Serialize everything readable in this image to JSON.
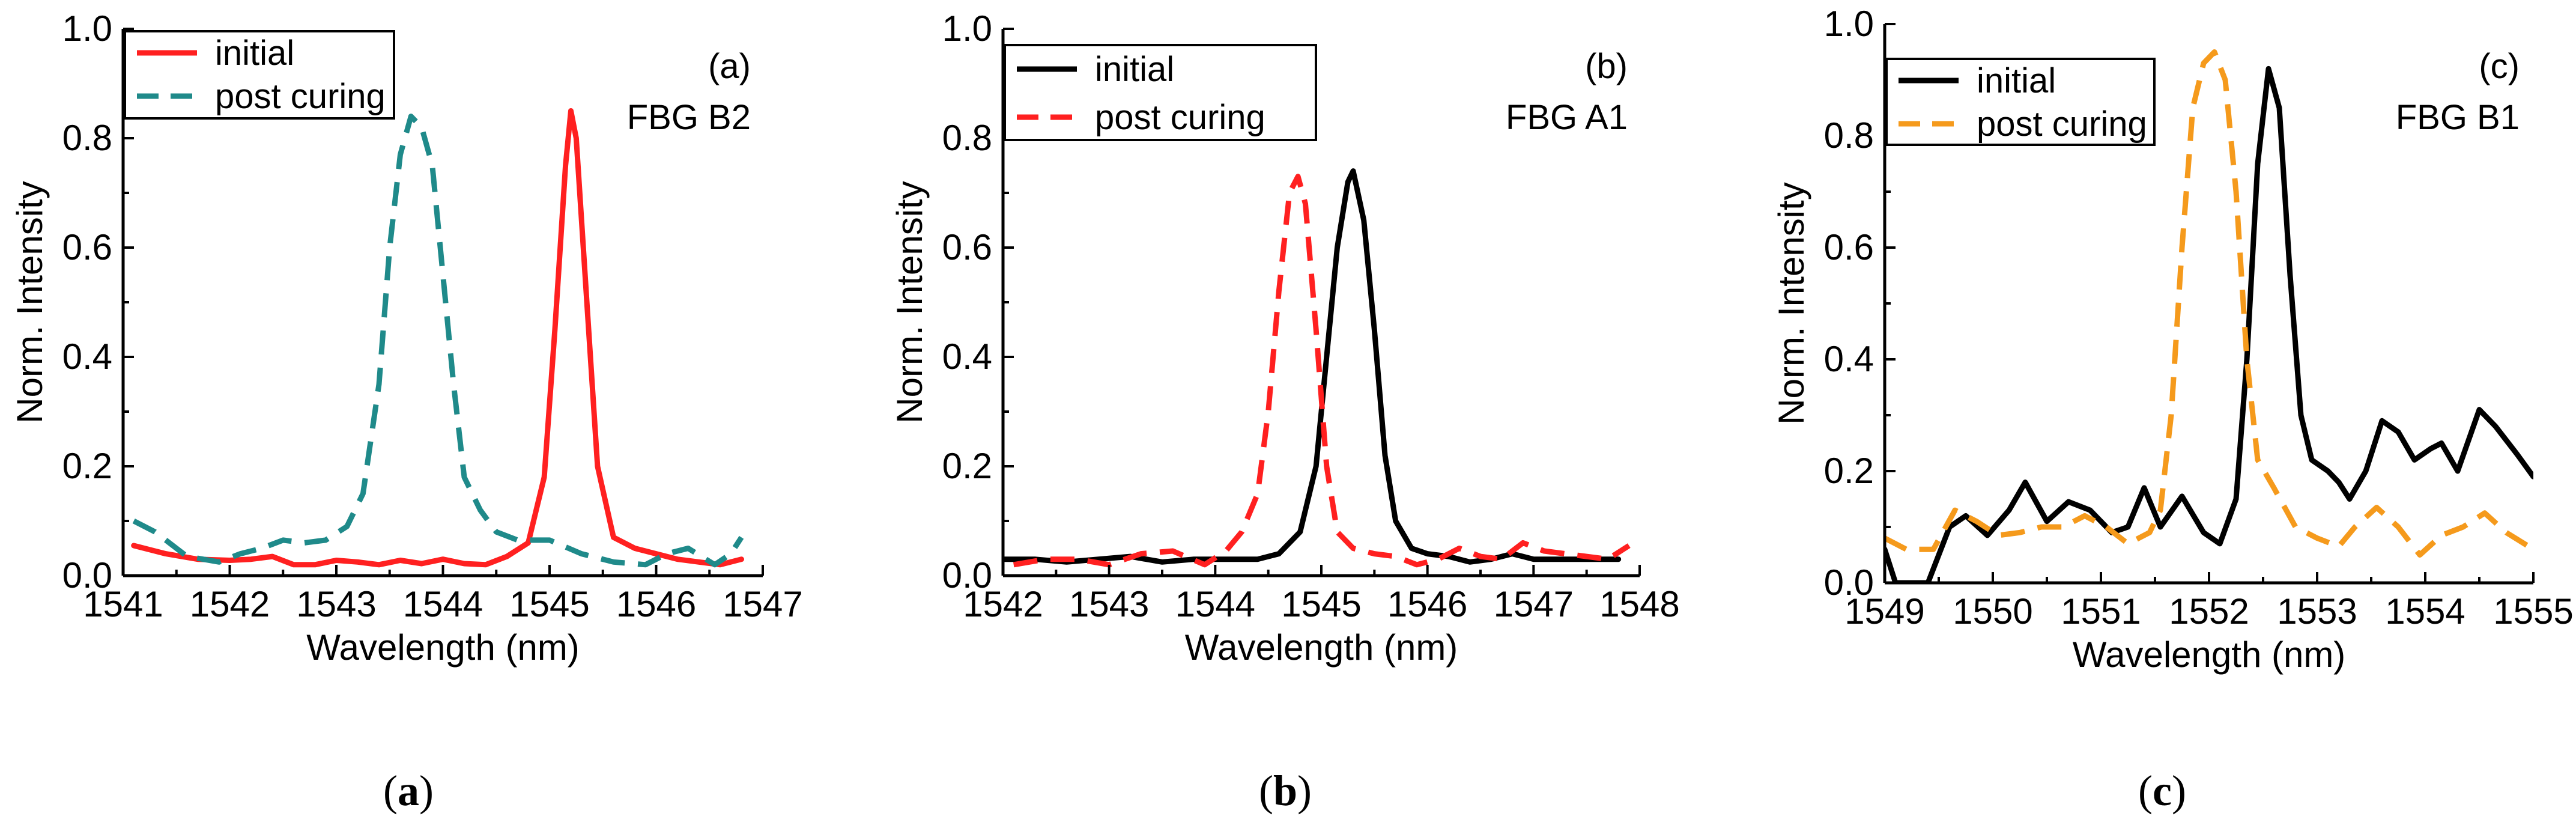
{
  "chart_data": [
    {
      "type": "line",
      "panel_label": "(a)",
      "annotation": "FBG B2",
      "caption": "a",
      "xlabel": "Wavelength (nm)",
      "ylabel": "Norm. Intensity",
      "xlim": [
        1541,
        1547
      ],
      "ylim": [
        0,
        1.0
      ],
      "xticks": [
        1541,
        1542,
        1543,
        1544,
        1545,
        1546,
        1547
      ],
      "yticks": [
        0.0,
        0.2,
        0.4,
        0.6,
        0.8,
        1.0
      ],
      "legend_position": "top-left",
      "series": [
        {
          "name": "initial",
          "color": "#ff2020",
          "style": "solid",
          "points": [
            [
              1541.1,
              0.055
            ],
            [
              1541.4,
              0.04
            ],
            [
              1541.7,
              0.03
            ],
            [
              1542.0,
              0.028
            ],
            [
              1542.2,
              0.03
            ],
            [
              1542.4,
              0.035
            ],
            [
              1542.6,
              0.02
            ],
            [
              1542.8,
              0.02
            ],
            [
              1543.0,
              0.028
            ],
            [
              1543.2,
              0.025
            ],
            [
              1543.4,
              0.02
            ],
            [
              1543.6,
              0.028
            ],
            [
              1543.8,
              0.022
            ],
            [
              1544.0,
              0.03
            ],
            [
              1544.2,
              0.022
            ],
            [
              1544.4,
              0.02
            ],
            [
              1544.6,
              0.035
            ],
            [
              1544.8,
              0.06
            ],
            [
              1544.95,
              0.18
            ],
            [
              1545.05,
              0.45
            ],
            [
              1545.15,
              0.75
            ],
            [
              1545.2,
              0.85
            ],
            [
              1545.25,
              0.8
            ],
            [
              1545.35,
              0.5
            ],
            [
              1545.45,
              0.2
            ],
            [
              1545.6,
              0.07
            ],
            [
              1545.8,
              0.05
            ],
            [
              1546.0,
              0.04
            ],
            [
              1546.2,
              0.03
            ],
            [
              1546.4,
              0.025
            ],
            [
              1546.6,
              0.02
            ],
            [
              1546.8,
              0.03
            ]
          ]
        },
        {
          "name": "post curing",
          "color": "#1f8a8a",
          "style": "dashed",
          "points": [
            [
              1541.1,
              0.1
            ],
            [
              1541.3,
              0.08
            ],
            [
              1541.6,
              0.035
            ],
            [
              1541.9,
              0.025
            ],
            [
              1542.1,
              0.04
            ],
            [
              1542.3,
              0.05
            ],
            [
              1542.5,
              0.065
            ],
            [
              1542.7,
              0.06
            ],
            [
              1542.9,
              0.065
            ],
            [
              1543.1,
              0.09
            ],
            [
              1543.25,
              0.15
            ],
            [
              1543.4,
              0.35
            ],
            [
              1543.5,
              0.6
            ],
            [
              1543.6,
              0.77
            ],
            [
              1543.7,
              0.84
            ],
            [
              1543.8,
              0.82
            ],
            [
              1543.9,
              0.75
            ],
            [
              1544.0,
              0.55
            ],
            [
              1544.1,
              0.35
            ],
            [
              1544.2,
              0.18
            ],
            [
              1544.35,
              0.12
            ],
            [
              1544.5,
              0.08
            ],
            [
              1544.7,
              0.065
            ],
            [
              1545.0,
              0.065
            ],
            [
              1545.3,
              0.04
            ],
            [
              1545.6,
              0.025
            ],
            [
              1545.9,
              0.02
            ],
            [
              1546.1,
              0.04
            ],
            [
              1546.3,
              0.05
            ],
            [
              1546.55,
              0.02
            ],
            [
              1546.7,
              0.04
            ],
            [
              1546.8,
              0.07
            ]
          ]
        }
      ]
    },
    {
      "type": "line",
      "panel_label": "(b)",
      "annotation": "FBG A1",
      "caption": "b",
      "xlabel": "Wavelength (nm)",
      "ylabel": "Norm. Intensity",
      "xlim": [
        1542,
        1548
      ],
      "ylim": [
        0,
        1.0
      ],
      "xticks": [
        1542,
        1543,
        1544,
        1545,
        1546,
        1547,
        1548
      ],
      "yticks": [
        0.0,
        0.2,
        0.4,
        0.6,
        0.8,
        1.0
      ],
      "legend_position": "top-left",
      "series": [
        {
          "name": "initial",
          "color": "#000000",
          "style": "solid",
          "points": [
            [
              1542.0,
              0.03
            ],
            [
              1542.3,
              0.03
            ],
            [
              1542.6,
              0.025
            ],
            [
              1542.9,
              0.03
            ],
            [
              1543.2,
              0.035
            ],
            [
              1543.5,
              0.025
            ],
            [
              1543.8,
              0.03
            ],
            [
              1544.1,
              0.03
            ],
            [
              1544.4,
              0.03
            ],
            [
              1544.6,
              0.04
            ],
            [
              1544.8,
              0.08
            ],
            [
              1544.95,
              0.2
            ],
            [
              1545.05,
              0.4
            ],
            [
              1545.15,
              0.6
            ],
            [
              1545.25,
              0.72
            ],
            [
              1545.3,
              0.74
            ],
            [
              1545.4,
              0.65
            ],
            [
              1545.5,
              0.45
            ],
            [
              1545.6,
              0.22
            ],
            [
              1545.7,
              0.1
            ],
            [
              1545.85,
              0.05
            ],
            [
              1546.0,
              0.04
            ],
            [
              1546.2,
              0.035
            ],
            [
              1546.4,
              0.025
            ],
            [
              1546.6,
              0.03
            ],
            [
              1546.8,
              0.04
            ],
            [
              1547.0,
              0.03
            ],
            [
              1547.2,
              0.03
            ],
            [
              1547.5,
              0.03
            ],
            [
              1547.8,
              0.03
            ]
          ]
        },
        {
          "name": "post curing",
          "color": "#ff2020",
          "style": "dashed",
          "points": [
            [
              1542.1,
              0.02
            ],
            [
              1542.4,
              0.03
            ],
            [
              1542.7,
              0.03
            ],
            [
              1543.0,
              0.02
            ],
            [
              1543.3,
              0.04
            ],
            [
              1543.6,
              0.045
            ],
            [
              1543.9,
              0.02
            ],
            [
              1544.1,
              0.045
            ],
            [
              1544.25,
              0.08
            ],
            [
              1544.4,
              0.15
            ],
            [
              1544.5,
              0.3
            ],
            [
              1544.6,
              0.52
            ],
            [
              1544.7,
              0.7
            ],
            [
              1544.78,
              0.73
            ],
            [
              1544.85,
              0.68
            ],
            [
              1544.95,
              0.45
            ],
            [
              1545.05,
              0.2
            ],
            [
              1545.15,
              0.08
            ],
            [
              1545.3,
              0.05
            ],
            [
              1545.5,
              0.04
            ],
            [
              1545.7,
              0.035
            ],
            [
              1545.9,
              0.02
            ],
            [
              1546.1,
              0.03
            ],
            [
              1546.3,
              0.05
            ],
            [
              1546.5,
              0.035
            ],
            [
              1546.7,
              0.03
            ],
            [
              1546.9,
              0.06
            ],
            [
              1547.1,
              0.045
            ],
            [
              1547.3,
              0.04
            ],
            [
              1547.5,
              0.035
            ],
            [
              1547.7,
              0.03
            ],
            [
              1547.9,
              0.055
            ]
          ]
        }
      ]
    },
    {
      "type": "line",
      "panel_label": "(c)",
      "annotation": "FBG B1",
      "caption": "c",
      "xlabel": "Wavelength (nm)",
      "ylabel": "Norm. Intensity",
      "xlim": [
        1549,
        1555
      ],
      "ylim": [
        0,
        1.0
      ],
      "xticks": [
        1549,
        1550,
        1551,
        1552,
        1553,
        1554,
        1555
      ],
      "yticks": [
        0.0,
        0.2,
        0.4,
        0.6,
        0.8,
        1.0
      ],
      "legend_position": "top-left",
      "series": [
        {
          "name": "initial",
          "color": "#000000",
          "style": "solid",
          "points": [
            [
              1549.0,
              0.06
            ],
            [
              1549.1,
              0.0
            ],
            [
              1549.4,
              0.0
            ],
            [
              1549.6,
              0.1
            ],
            [
              1549.75,
              0.12
            ],
            [
              1549.95,
              0.085
            ],
            [
              1550.15,
              0.13
            ],
            [
              1550.3,
              0.18
            ],
            [
              1550.5,
              0.11
            ],
            [
              1550.7,
              0.145
            ],
            [
              1550.9,
              0.13
            ],
            [
              1551.1,
              0.09
            ],
            [
              1551.25,
              0.1
            ],
            [
              1551.4,
              0.17
            ],
            [
              1551.55,
              0.1
            ],
            [
              1551.75,
              0.155
            ],
            [
              1551.95,
              0.09
            ],
            [
              1552.1,
              0.07
            ],
            [
              1552.25,
              0.15
            ],
            [
              1552.35,
              0.4
            ],
            [
              1552.45,
              0.75
            ],
            [
              1552.55,
              0.92
            ],
            [
              1552.65,
              0.85
            ],
            [
              1552.75,
              0.55
            ],
            [
              1552.85,
              0.3
            ],
            [
              1552.95,
              0.22
            ],
            [
              1553.1,
              0.2
            ],
            [
              1553.2,
              0.18
            ],
            [
              1553.3,
              0.15
            ],
            [
              1553.45,
              0.2
            ],
            [
              1553.6,
              0.29
            ],
            [
              1553.75,
              0.27
            ],
            [
              1553.9,
              0.22
            ],
            [
              1554.05,
              0.24
            ],
            [
              1554.15,
              0.25
            ],
            [
              1554.3,
              0.2
            ],
            [
              1554.5,
              0.31
            ],
            [
              1554.65,
              0.28
            ],
            [
              1554.85,
              0.23
            ],
            [
              1555.0,
              0.19
            ]
          ]
        },
        {
          "name": "post curing",
          "color": "#f59a1c",
          "style": "dashed",
          "points": [
            [
              1549.0,
              0.08
            ],
            [
              1549.2,
              0.06
            ],
            [
              1549.45,
              0.06
            ],
            [
              1549.65,
              0.13
            ],
            [
              1549.85,
              0.11
            ],
            [
              1550.05,
              0.085
            ],
            [
              1550.25,
              0.09
            ],
            [
              1550.45,
              0.1
            ],
            [
              1550.65,
              0.1
            ],
            [
              1550.85,
              0.12
            ],
            [
              1551.05,
              0.1
            ],
            [
              1551.25,
              0.07
            ],
            [
              1551.45,
              0.09
            ],
            [
              1551.55,
              0.13
            ],
            [
              1551.65,
              0.3
            ],
            [
              1551.75,
              0.6
            ],
            [
              1551.85,
              0.85
            ],
            [
              1551.95,
              0.93
            ],
            [
              1552.05,
              0.95
            ],
            [
              1552.15,
              0.9
            ],
            [
              1552.25,
              0.7
            ],
            [
              1552.35,
              0.4
            ],
            [
              1552.45,
              0.22
            ],
            [
              1552.6,
              0.17
            ],
            [
              1552.8,
              0.1
            ],
            [
              1553.0,
              0.08
            ],
            [
              1553.2,
              0.065
            ],
            [
              1553.35,
              0.1
            ],
            [
              1553.55,
              0.135
            ],
            [
              1553.75,
              0.1
            ],
            [
              1553.95,
              0.05
            ],
            [
              1554.15,
              0.085
            ],
            [
              1554.35,
              0.1
            ],
            [
              1554.55,
              0.125
            ],
            [
              1554.75,
              0.09
            ],
            [
              1555.0,
              0.06
            ]
          ]
        }
      ]
    }
  ]
}
